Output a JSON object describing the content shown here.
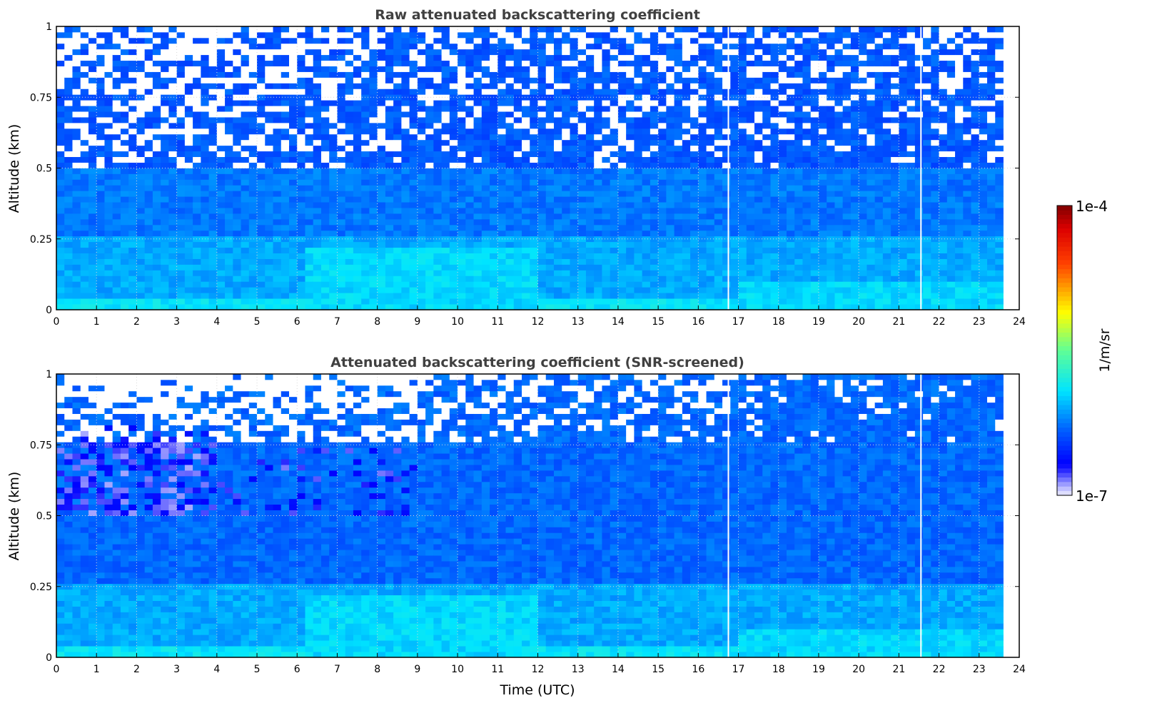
{
  "chart_data": [
    {
      "type": "heatmap",
      "title": "Raw attenuated backscattering coefficient",
      "xlabel": "",
      "ylabel": "Altitude (km)",
      "xlim": [
        0,
        24
      ],
      "ylim": [
        0,
        1
      ],
      "xticks": [
        "0",
        "1",
        "2",
        "3",
        "4",
        "5",
        "6",
        "7",
        "8",
        "9",
        "10",
        "11",
        "12",
        "13",
        "14",
        "15",
        "16",
        "17",
        "18",
        "19",
        "20",
        "21",
        "22",
        "23",
        "24"
      ],
      "yticks": [
        "0",
        "0.25",
        "0.5",
        "0.75",
        "1"
      ],
      "grid": true,
      "data_end_hour": 23.6,
      "missing_time_lines_hours": [
        16.75,
        21.55
      ],
      "bands_log10": [
        {
          "alt": [
            0,
            0.05
          ],
          "log10": -5.9
        },
        {
          "alt": [
            0.05,
            0.25
          ],
          "log10": -6.1
        },
        {
          "alt": [
            0.25,
            0.5
          ],
          "log10": -6.25
        },
        {
          "alt": [
            0.5,
            1.0
          ],
          "log10": -6.35
        }
      ],
      "enhanced_regions": [
        {
          "hours": [
            6.3,
            12
          ],
          "alt": [
            0,
            0.22
          ],
          "log10": -5.95
        },
        {
          "hours": [
            17,
            23.6
          ],
          "alt": [
            0,
            0.1
          ],
          "log10": -5.95
        }
      ],
      "missing_fraction": [
        {
          "alt": [
            0.5,
            1.0
          ],
          "hours": [
            0,
            7
          ],
          "fraction": 0.45
        },
        {
          "alt": [
            0.5,
            1.0
          ],
          "hours": [
            7,
            24
          ],
          "fraction": 0.25
        }
      ],
      "low_regions": []
    },
    {
      "type": "heatmap",
      "title": "Attenuated backscattering coefficient (SNR-screened)",
      "xlabel": "Time (UTC)",
      "ylabel": "Altitude (km)",
      "xlim": [
        0,
        24
      ],
      "ylim": [
        0,
        1
      ],
      "xticks": [
        "0",
        "1",
        "2",
        "3",
        "4",
        "5",
        "6",
        "7",
        "8",
        "9",
        "10",
        "11",
        "12",
        "13",
        "14",
        "15",
        "16",
        "17",
        "18",
        "19",
        "20",
        "21",
        "22",
        "23",
        "24"
      ],
      "yticks": [
        "0",
        "0.25",
        "0.5",
        "0.75",
        "1"
      ],
      "grid": true,
      "data_end_hour": 23.6,
      "missing_time_lines_hours": [
        16.75,
        21.55
      ],
      "bands_log10": [
        {
          "alt": [
            0,
            0.05
          ],
          "log10": -5.9
        },
        {
          "alt": [
            0.05,
            0.25
          ],
          "log10": -6.1
        },
        {
          "alt": [
            0.25,
            0.5
          ],
          "log10": -6.3
        },
        {
          "alt": [
            0.5,
            1.0
          ],
          "log10": -6.3
        }
      ],
      "enhanced_regions": [
        {
          "hours": [
            6.3,
            12
          ],
          "alt": [
            0,
            0.22
          ],
          "log10": -5.95
        },
        {
          "hours": [
            17,
            23.6
          ],
          "alt": [
            0,
            0.1
          ],
          "log10": -5.95
        }
      ],
      "missing_fraction": [
        {
          "alt": [
            0.76,
            1.0
          ],
          "hours": [
            0,
            9
          ],
          "fraction": 0.6
        },
        {
          "alt": [
            0.76,
            1.0
          ],
          "hours": [
            9,
            16.7
          ],
          "fraction": 0.35
        },
        {
          "alt": [
            0.76,
            1.0
          ],
          "hours": [
            16.7,
            24
          ],
          "fraction": 0.12
        }
      ],
      "low_regions": [
        {
          "hours": [
            0,
            4
          ],
          "alt": [
            0.5,
            0.82
          ],
          "log10": -6.75,
          "fraction": 0.5
        },
        {
          "hours": [
            4,
            9
          ],
          "alt": [
            0.5,
            0.75
          ],
          "log10": -6.7,
          "fraction": 0.15
        }
      ]
    }
  ],
  "colorbar": {
    "label": "1/m/sr",
    "max_label": "1e-4",
    "min_label": "1e-7",
    "log10_range": [
      -7,
      -4
    ],
    "scale": "log"
  }
}
